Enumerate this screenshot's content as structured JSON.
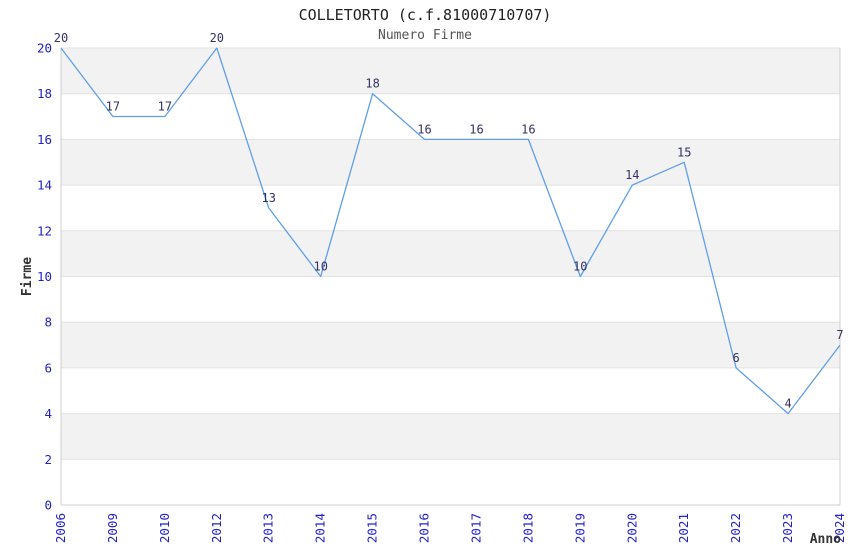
{
  "chart": {
    "title": "COLLETORTO (c.f.81000710707)",
    "subtitle": "Numero Firme"
  },
  "chart_data": {
    "type": "line",
    "title": "COLLETORTO (c.f.81000710707)",
    "subtitle": "Numero Firme",
    "xlabel": "Anno",
    "ylabel": "Firme",
    "categories": [
      "2006",
      "2009",
      "2010",
      "2012",
      "2013",
      "2014",
      "2015",
      "2016",
      "2017",
      "2018",
      "2019",
      "2020",
      "2021",
      "2022",
      "2023",
      "2024"
    ],
    "values": [
      20,
      17,
      17,
      20,
      13,
      10,
      18,
      16,
      16,
      16,
      10,
      14,
      15,
      6,
      4,
      7
    ],
    "data_labels_visible": true,
    "ylim": [
      0,
      20
    ],
    "yticks": [
      0,
      2,
      4,
      6,
      8,
      10,
      12,
      14,
      16,
      18,
      20
    ],
    "grid": true,
    "legend_position": "none",
    "plot_bands": [
      [
        2,
        4
      ],
      [
        6,
        8
      ],
      [
        10,
        12
      ],
      [
        14,
        16
      ],
      [
        18,
        20
      ]
    ],
    "colors": {
      "line": "#5f9fe8",
      "plot_band": "#f2f2f2",
      "gridline": "#e2e2e2",
      "axis_border": "#cfcfcf",
      "tick_label": "#2222cc",
      "data_label": "#333366",
      "title": "#222222",
      "subtitle": "#555555",
      "axis_title": "#333333",
      "background": "#ffffff"
    }
  }
}
